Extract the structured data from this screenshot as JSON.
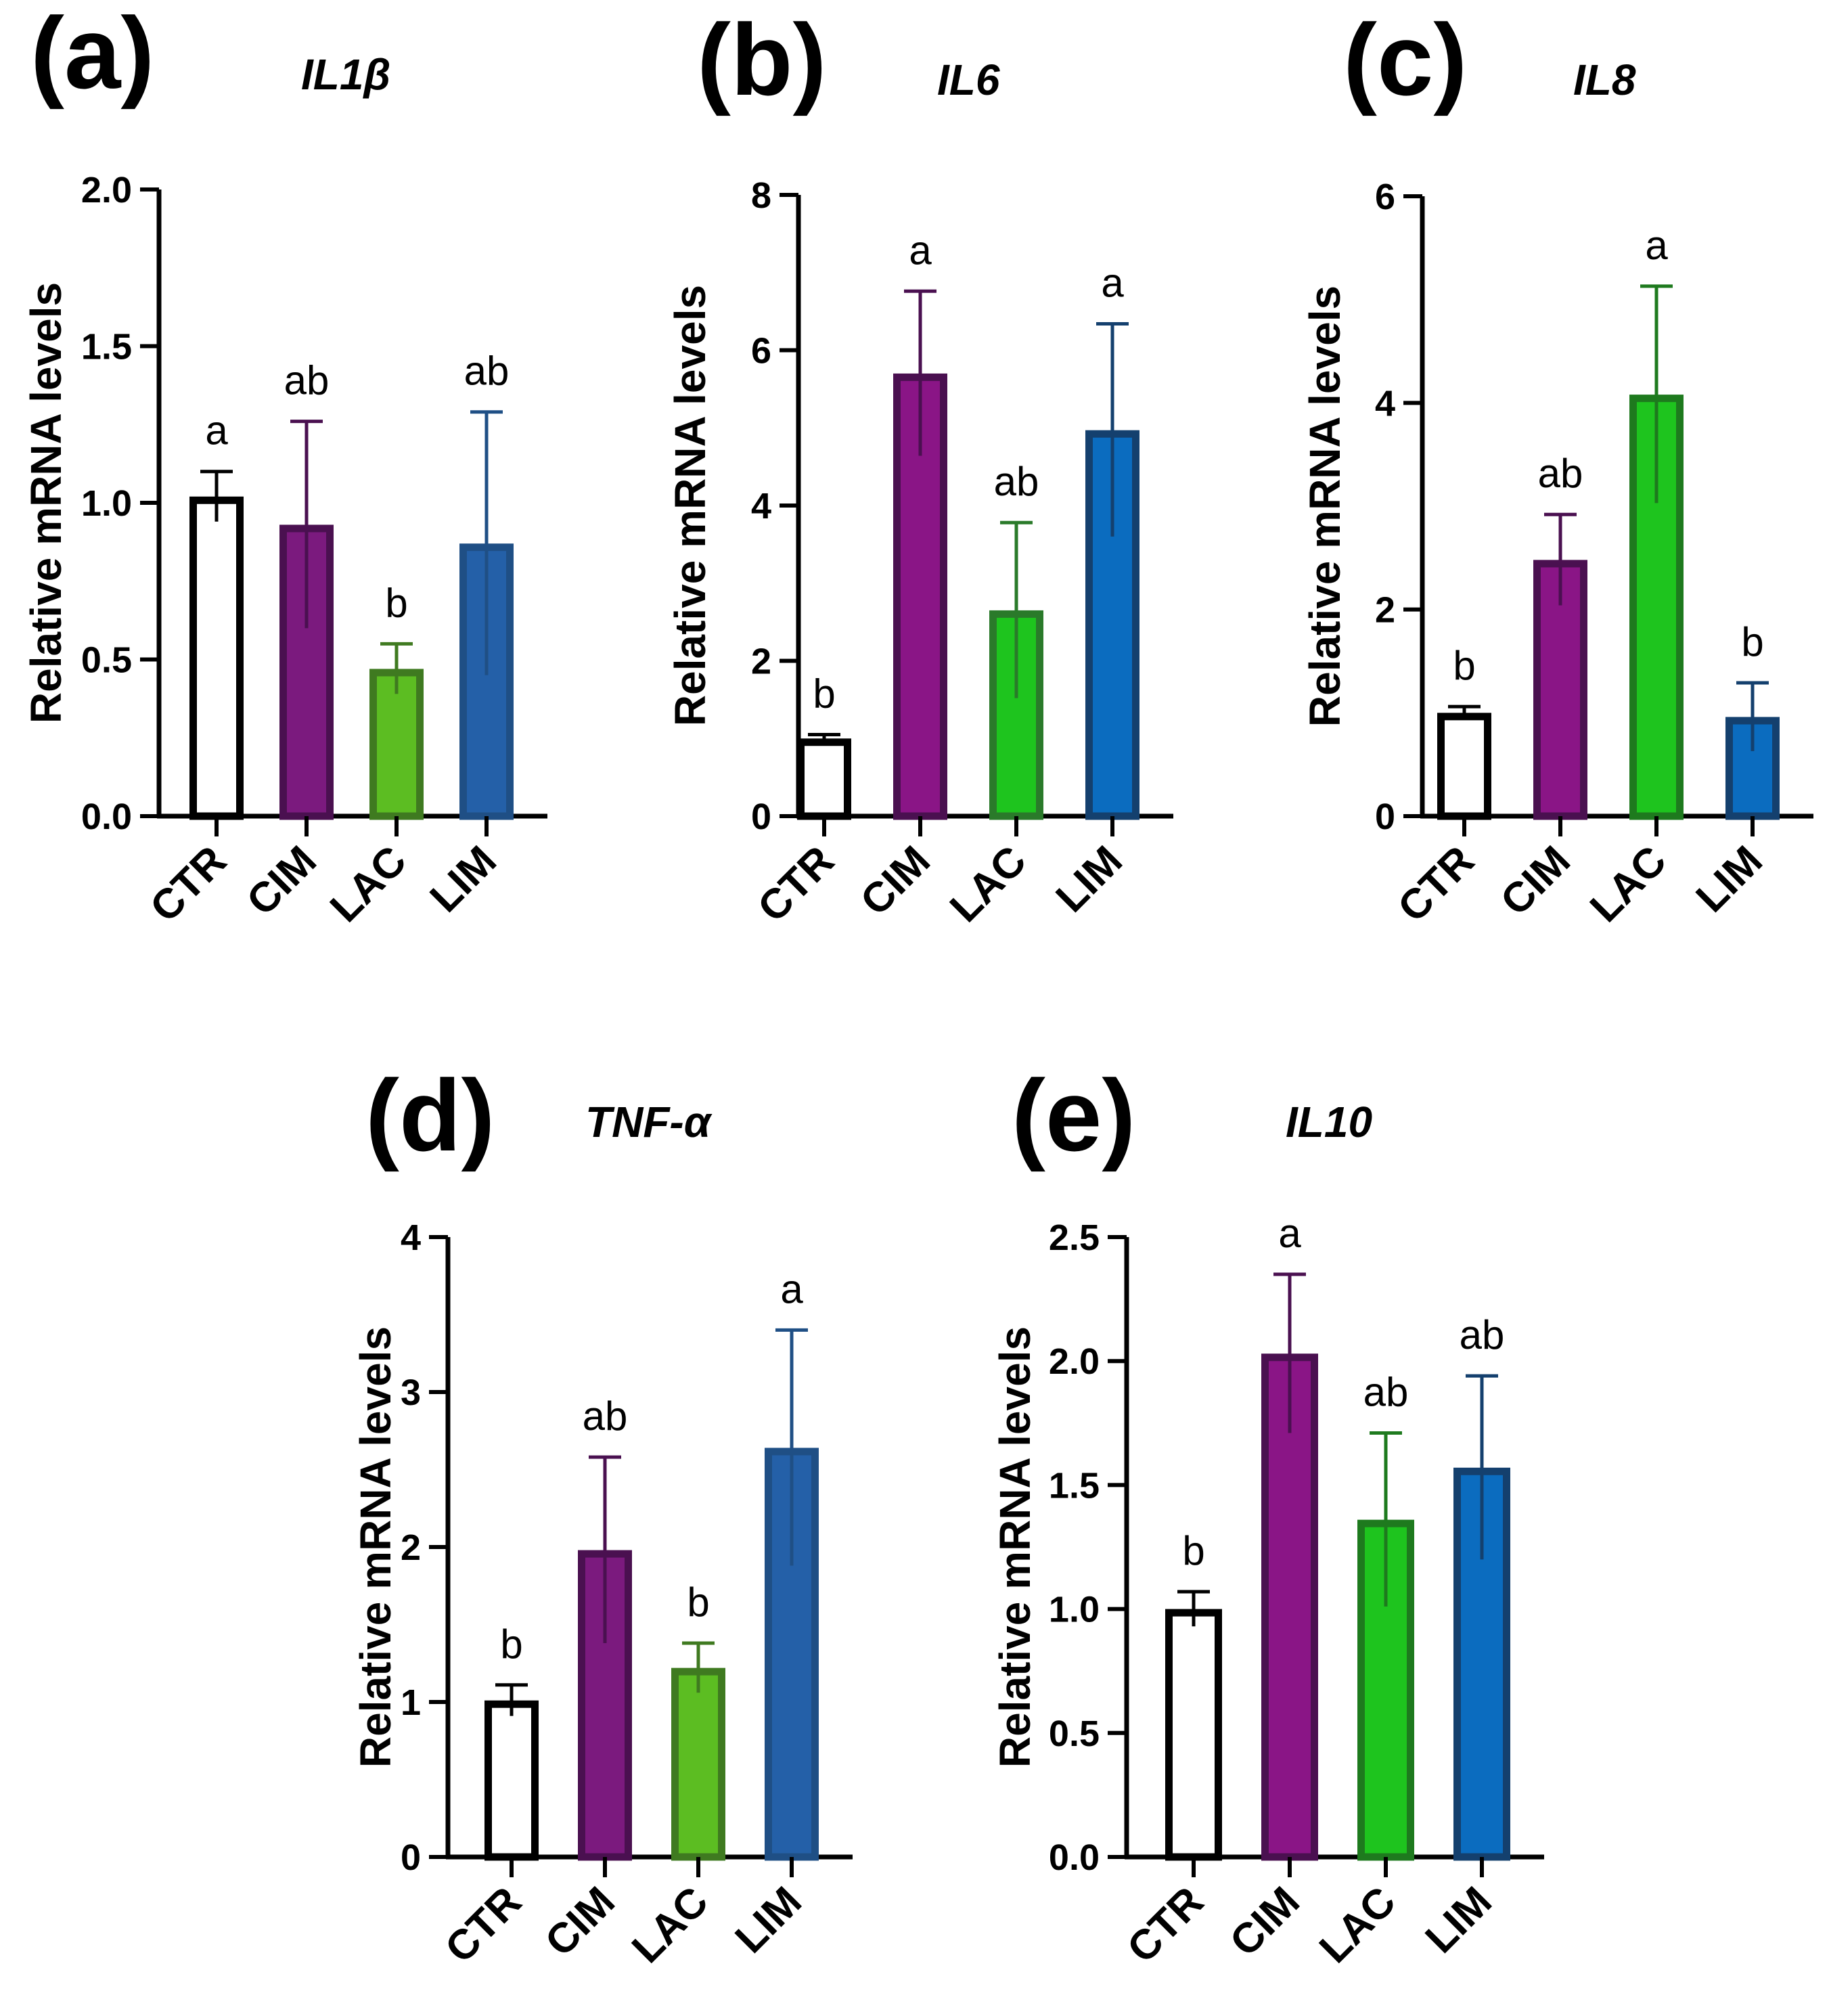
{
  "chart_data": [
    {
      "type": "bar",
      "panel": "(a)",
      "title": "IL1β",
      "ylabel": "Relative mRNA levels",
      "ylim": [
        0,
        2.0
      ],
      "yticks": [
        0.0,
        0.5,
        1.0,
        1.5,
        2.0
      ],
      "ytick_labels": [
        "0.0",
        "0.5",
        "1.0",
        "1.5",
        "2.0"
      ],
      "categories": [
        "CTR",
        "CIM",
        "LAC",
        "LIM"
      ],
      "values": [
        1.02,
        0.93,
        0.47,
        0.87
      ],
      "errors": [
        0.08,
        0.33,
        0.08,
        0.42
      ],
      "significance": [
        "a",
        "ab",
        "b",
        "ab"
      ],
      "bar_fills": [
        "#ffffff",
        "#7b1a7e",
        "#5cbd22",
        "#2460a8"
      ],
      "bar_strokes": [
        "#000000",
        "#4a1050",
        "#3f7a20",
        "#1f4f85"
      ]
    },
    {
      "type": "bar",
      "panel": "(b)",
      "title": "IL6",
      "ylabel": "Relative mRNA levels",
      "ylim": [
        0,
        8
      ],
      "yticks": [
        0,
        2,
        4,
        6,
        8
      ],
      "ytick_labels": [
        "0",
        "2",
        "4",
        "6",
        "8"
      ],
      "categories": [
        "CTR",
        "CIM",
        "LAC",
        "LIM"
      ],
      "values": [
        1.0,
        5.7,
        2.65,
        4.97
      ],
      "errors": [
        0.05,
        1.06,
        1.13,
        1.37
      ],
      "significance": [
        "b",
        "a",
        "ab",
        "a"
      ],
      "bar_fills": [
        "#ffffff",
        "#8a1586",
        "#1ec41e",
        "#0b6cbf"
      ],
      "bar_strokes": [
        "#000000",
        "#4a1050",
        "#2a7a2a",
        "#14406e"
      ]
    },
    {
      "type": "bar",
      "panel": "(c)",
      "title": "IL8",
      "ylabel": "Relative mRNA levels",
      "ylim": [
        0,
        6
      ],
      "yticks": [
        0,
        2,
        4,
        6
      ],
      "ytick_labels": [
        "0",
        "2",
        "4",
        "6"
      ],
      "categories": [
        "CTR",
        "CIM",
        "LAC",
        "LIM"
      ],
      "values": [
        1.0,
        2.48,
        4.08,
        0.96
      ],
      "errors": [
        0.06,
        0.44,
        1.05,
        0.33
      ],
      "significance": [
        "b",
        "ab",
        "a",
        "b"
      ],
      "bar_fills": [
        "#ffffff",
        "#8a1586",
        "#1ec41e",
        "#0b6cbf"
      ],
      "bar_strokes": [
        "#000000",
        "#4a1050",
        "#1e7a1e",
        "#14406e"
      ]
    },
    {
      "type": "bar",
      "panel": "(d)",
      "title": "TNF-α",
      "ylabel": "Relative mRNA levels",
      "ylim": [
        0,
        4
      ],
      "yticks": [
        0,
        1,
        2,
        3,
        4
      ],
      "ytick_labels": [
        "0",
        "1",
        "2",
        "3",
        "4"
      ],
      "categories": [
        "CTR",
        "CIM",
        "LAC",
        "LIM"
      ],
      "values": [
        1.01,
        1.98,
        1.22,
        2.64
      ],
      "errors": [
        0.1,
        0.6,
        0.16,
        0.76
      ],
      "significance": [
        "b",
        "ab",
        "b",
        "a"
      ],
      "bar_fills": [
        "#ffffff",
        "#7b1a7e",
        "#5cbd22",
        "#2460a8"
      ],
      "bar_strokes": [
        "#000000",
        "#4a1050",
        "#3f7a20",
        "#1f4f85"
      ]
    },
    {
      "type": "bar",
      "panel": "(e)",
      "title": "IL10",
      "ylabel": "Relative mRNA levels",
      "ylim": [
        0,
        2.5
      ],
      "yticks": [
        0.0,
        0.5,
        1.0,
        1.5,
        2.0,
        2.5
      ],
      "ytick_labels": [
        "0.0",
        "0.5",
        "1.0",
        "1.5",
        "2.0",
        "2.5"
      ],
      "categories": [
        "CTR",
        "CIM",
        "LAC",
        "LIM"
      ],
      "values": [
        1.0,
        2.03,
        1.36,
        1.57
      ],
      "errors": [
        0.07,
        0.32,
        0.35,
        0.37
      ],
      "significance": [
        "b",
        "a",
        "ab",
        "ab"
      ],
      "bar_fills": [
        "#ffffff",
        "#8a1586",
        "#1ec41e",
        "#0b6cbf"
      ],
      "bar_strokes": [
        "#000000",
        "#4a1050",
        "#1e7a1e",
        "#14406e"
      ]
    }
  ]
}
